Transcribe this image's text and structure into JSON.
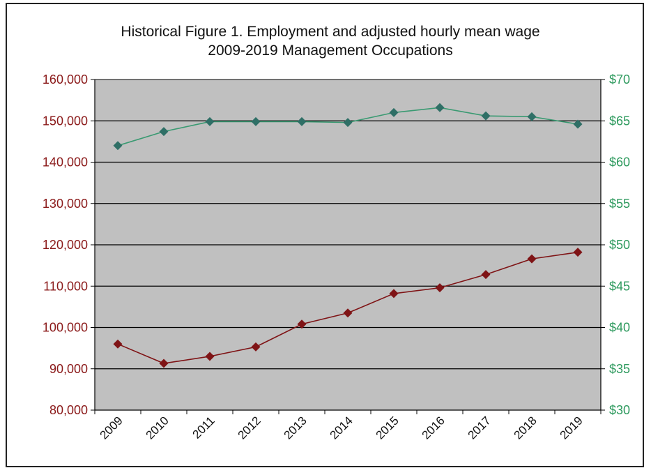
{
  "chart_data": {
    "type": "line",
    "title": "Historical Figure 1. Employment and adjusted hourly mean wage",
    "subtitle": "2009-2019 Management Occupations",
    "categories": [
      "2009",
      "2010",
      "2011",
      "2012",
      "2013",
      "2014",
      "2015",
      "2016",
      "2017",
      "2018",
      "2019"
    ],
    "left_axis": {
      "ylim": [
        80000,
        160000
      ],
      "ticks": [
        "80,000",
        "90,000",
        "100,000",
        "110,000",
        "120,000",
        "130,000",
        "140,000",
        "150,000",
        "160,000"
      ],
      "color": "#8b1a1a"
    },
    "right_axis": {
      "ylim": [
        30,
        70
      ],
      "ticks": [
        "$30",
        "$35",
        "$40",
        "$45",
        "$50",
        "$55",
        "$60",
        "$65",
        "$70"
      ],
      "color": "#2e9a5e"
    },
    "series": [
      {
        "axis": "left",
        "color": "#7f1416",
        "values": [
          96000,
          91300,
          93000,
          95300,
          100800,
          103500,
          108200,
          109600,
          112800,
          116600,
          118200
        ]
      },
      {
        "axis": "right",
        "color": "#3a9a72",
        "values": [
          62.0,
          63.7,
          64.9,
          64.9,
          64.9,
          64.8,
          66.0,
          66.6,
          65.6,
          65.5,
          64.6
        ]
      }
    ],
    "grid": true,
    "plot_background": "#c0c0c0"
  }
}
